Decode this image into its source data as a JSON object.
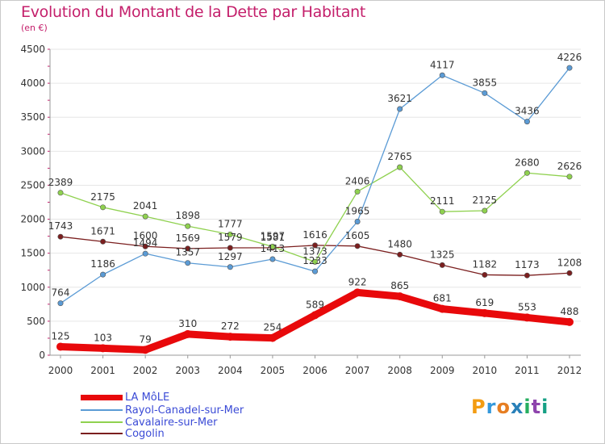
{
  "chart_data": {
    "type": "line",
    "title": "Evolution du Montant de la Dette par Habitant",
    "subtitle": "(en €)",
    "categories": [
      "2000",
      "2001",
      "2002",
      "2003",
      "2004",
      "2005",
      "2006",
      "2007",
      "2008",
      "2009",
      "2010",
      "2011",
      "2012"
    ],
    "ylim": [
      0,
      4500
    ],
    "yticks": [
      0,
      500,
      1000,
      1500,
      2000,
      2500,
      3000,
      3500,
      4000,
      4500
    ],
    "grid": true,
    "legend_position": "bottom-left",
    "series": [
      {
        "name": "LA MôLE",
        "color": "#e8090b",
        "values": [
          125,
          103,
          79,
          310,
          272,
          254,
          589,
          922,
          865,
          681,
          619,
          553,
          488
        ]
      },
      {
        "name": "Rayol-Canadel-sur-Mer",
        "color": "#5b9bd5",
        "values": [
          764,
          1186,
          1494,
          1357,
          1297,
          1413,
          1233,
          1965,
          3621,
          4117,
          3855,
          3436,
          4226
        ]
      },
      {
        "name": "Cavalaire-sur-Mer",
        "color": "#8fd14f",
        "values": [
          2389,
          2175,
          2041,
          1898,
          1777,
          1597,
          1373,
          2406,
          2765,
          2111,
          2125,
          2680,
          2626
        ]
      },
      {
        "name": "Cogolin",
        "color": "#7b1f1f",
        "values": [
          1743,
          1671,
          1600,
          1569,
          1579,
          1581,
          1616,
          1605,
          1480,
          1325,
          1182,
          1173,
          1208
        ]
      }
    ]
  },
  "logo": {
    "text": "Proxiti",
    "letters": [
      "P",
      "r",
      "o",
      "x",
      "i",
      "t",
      "i"
    ],
    "colors": [
      "#f39c12",
      "#3498db",
      "#e67e22",
      "#2980b9",
      "#27ae60",
      "#8e44ad",
      "#16a085"
    ]
  }
}
